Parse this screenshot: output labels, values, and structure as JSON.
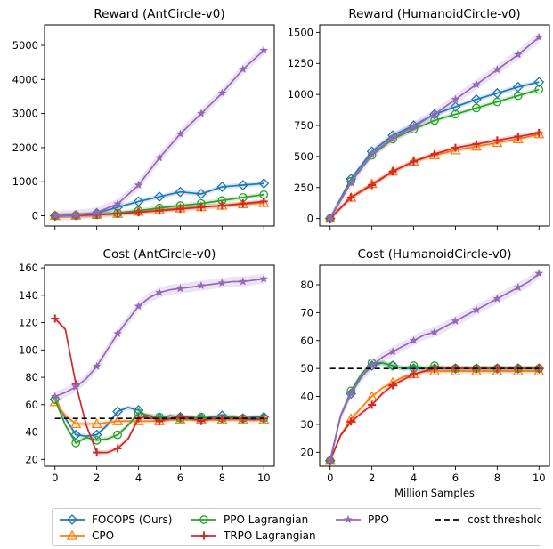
{
  "figure": {
    "shared_xlabel": "Million Samples"
  },
  "colors": {
    "FOCOPS (Ours)": "#1f77b4",
    "CPO": "#ff7f0e",
    "PPO Lagrangian": "#2ca02c",
    "TRPO Lagrangian": "#d62728",
    "PPO": "#9467bd",
    "cost threshold": "#000000"
  },
  "legend": [
    {
      "label": "FOCOPS (Ours)",
      "marker": "diamond",
      "style": "solid"
    },
    {
      "label": "CPO",
      "marker": "triangle",
      "style": "solid"
    },
    {
      "label": "PPO Lagrangian",
      "marker": "circle",
      "style": "solid"
    },
    {
      "label": "TRPO Lagrangian",
      "marker": "plus",
      "style": "solid"
    },
    {
      "label": "PPO",
      "marker": "star",
      "style": "solid"
    },
    {
      "label": "cost threshold",
      "marker": "none",
      "style": "dashed"
    }
  ],
  "chart_data": [
    {
      "type": "line",
      "title": "Reward (AntCircle-v0)",
      "xlabel": "",
      "xlim": [
        -0.5,
        10.5
      ],
      "ylim": [
        -300,
        5600
      ],
      "xticks": [
        0,
        2,
        4,
        6,
        8,
        10
      ],
      "yticks": [
        0,
        1000,
        2000,
        3000,
        4000,
        5000
      ],
      "show_xticklabels": false,
      "x": [
        0,
        1,
        2,
        3,
        4,
        5,
        6,
        7,
        8,
        9,
        10
      ],
      "series": [
        {
          "name": "FOCOPS (Ours)",
          "values": [
            0,
            20,
            80,
            250,
            420,
            560,
            700,
            640,
            850,
            900,
            950
          ]
        },
        {
          "name": "CPO",
          "values": [
            0,
            10,
            30,
            60,
            120,
            170,
            220,
            260,
            300,
            340,
            380
          ]
        },
        {
          "name": "PPO Lagrangian",
          "values": [
            0,
            10,
            30,
            80,
            150,
            230,
            300,
            360,
            450,
            540,
            620
          ]
        },
        {
          "name": "TRPO Lagrangian",
          "values": [
            0,
            10,
            30,
            60,
            100,
            150,
            200,
            250,
            300,
            360,
            420
          ]
        },
        {
          "name": "PPO",
          "values": [
            0,
            20,
            100,
            350,
            900,
            1700,
            2400,
            3000,
            3600,
            4300,
            4850
          ]
        }
      ]
    },
    {
      "type": "line",
      "title": "Reward (HumanoidCircle-v0)",
      "xlabel": "",
      "xlim": [
        -0.5,
        10.5
      ],
      "ylim": [
        -60,
        1560
      ],
      "xticks": [
        0,
        2,
        4,
        6,
        8,
        10
      ],
      "yticks": [
        0,
        250,
        500,
        750,
        1000,
        1250,
        1500
      ],
      "show_xticklabels": false,
      "x": [
        0,
        1,
        2,
        3,
        4,
        5,
        6,
        7,
        8,
        9,
        10
      ],
      "series": [
        {
          "name": "FOCOPS (Ours)",
          "values": [
            0,
            320,
            540,
            670,
            750,
            840,
            900,
            960,
            1010,
            1060,
            1100
          ]
        },
        {
          "name": "CPO",
          "values": [
            0,
            170,
            280,
            380,
            460,
            510,
            550,
            580,
            610,
            640,
            680
          ]
        },
        {
          "name": "PPO Lagrangian",
          "values": [
            0,
            300,
            510,
            640,
            720,
            790,
            840,
            890,
            940,
            990,
            1040
          ]
        },
        {
          "name": "TRPO Lagrangian",
          "values": [
            0,
            170,
            270,
            380,
            460,
            520,
            570,
            600,
            630,
            660,
            690
          ]
        },
        {
          "name": "PPO",
          "values": [
            0,
            290,
            520,
            650,
            740,
            840,
            960,
            1080,
            1200,
            1320,
            1460
          ]
        }
      ]
    },
    {
      "type": "line",
      "title": "Cost (AntCircle-v0)",
      "xlabel": "",
      "xlim": [
        -0.5,
        10.5
      ],
      "ylim": [
        15,
        162
      ],
      "xticks": [
        0,
        2,
        4,
        6,
        8,
        10
      ],
      "yticks": [
        20,
        40,
        60,
        80,
        100,
        120,
        140,
        160
      ],
      "show_xticklabels": true,
      "threshold": 50,
      "x": [
        0,
        0.5,
        1,
        1.5,
        2,
        2.5,
        3,
        3.5,
        4,
        4.5,
        5,
        5.5,
        6,
        6.5,
        7,
        7.5,
        8,
        8.5,
        9,
        9.5,
        10
      ],
      "series": [
        {
          "name": "FOCOPS (Ours)",
          "values": [
            64,
            50,
            38,
            37,
            38,
            45,
            55,
            58,
            56,
            50,
            50,
            52,
            51,
            51,
            50,
            51,
            52,
            51,
            50,
            51,
            51
          ]
        },
        {
          "name": "CPO",
          "values": [
            62,
            52,
            46,
            46,
            46,
            47,
            48,
            48,
            48,
            48,
            48,
            49,
            49,
            49,
            49,
            49,
            49,
            49,
            49,
            49,
            49
          ]
        },
        {
          "name": "PPO Lagrangian",
          "values": [
            64,
            45,
            32,
            36,
            34,
            35,
            38,
            45,
            54,
            52,
            51,
            50,
            50,
            50,
            51,
            50,
            50,
            51,
            50,
            50,
            50
          ]
        },
        {
          "name": "TRPO Lagrangian",
          "values": [
            123,
            115,
            75,
            45,
            25,
            25,
            28,
            35,
            50,
            52,
            48,
            50,
            51,
            50,
            48,
            50,
            50,
            50,
            50,
            49,
            50
          ]
        },
        {
          "name": "PPO",
          "values": [
            66,
            69,
            73,
            79,
            88,
            100,
            112,
            122,
            132,
            138,
            142,
            144,
            145,
            146,
            147,
            148,
            149,
            150,
            150,
            151,
            152
          ]
        }
      ]
    },
    {
      "type": "line",
      "title": "Cost (HumanoidCircle-v0)",
      "xlabel": "Million Samples",
      "xlim": [
        -0.5,
        10.5
      ],
      "ylim": [
        15,
        87
      ],
      "xticks": [
        0,
        2,
        4,
        6,
        8,
        10
      ],
      "yticks": [
        20,
        30,
        40,
        50,
        60,
        70,
        80
      ],
      "show_xticklabels": true,
      "threshold": 50,
      "x": [
        0,
        0.5,
        1,
        1.5,
        2,
        2.5,
        3,
        3.5,
        4,
        4.5,
        5,
        5.5,
        6,
        6.5,
        7,
        7.5,
        8,
        8.5,
        9,
        9.5,
        10
      ],
      "series": [
        {
          "name": "FOCOPS (Ours)",
          "values": [
            17,
            33,
            41,
            47,
            51,
            52,
            51,
            50,
            50,
            50,
            50,
            50,
            50,
            50,
            50,
            50,
            50,
            50,
            50,
            50,
            50
          ]
        },
        {
          "name": "CPO",
          "values": [
            17,
            26,
            32,
            36,
            40,
            43,
            45,
            47,
            48,
            49,
            49,
            49,
            49,
            49,
            49,
            49,
            49,
            49,
            49,
            49,
            49
          ]
        },
        {
          "name": "PPO Lagrangian",
          "values": [
            17,
            33,
            42,
            48,
            52,
            52,
            51,
            50,
            51,
            50,
            51,
            50,
            50,
            50,
            50,
            50,
            50,
            50,
            50,
            50,
            50
          ]
        },
        {
          "name": "TRPO Lagrangian",
          "values": [
            17,
            26,
            31,
            34,
            37,
            41,
            44,
            46,
            48,
            49,
            50,
            50,
            50,
            50,
            50,
            50,
            50,
            50,
            50,
            50,
            50
          ]
        },
        {
          "name": "PPO",
          "values": [
            17,
            33,
            41,
            47,
            51,
            54,
            56,
            58,
            60,
            62,
            63,
            65,
            67,
            69,
            71,
            73,
            75,
            77,
            79,
            81,
            84
          ]
        }
      ]
    }
  ]
}
